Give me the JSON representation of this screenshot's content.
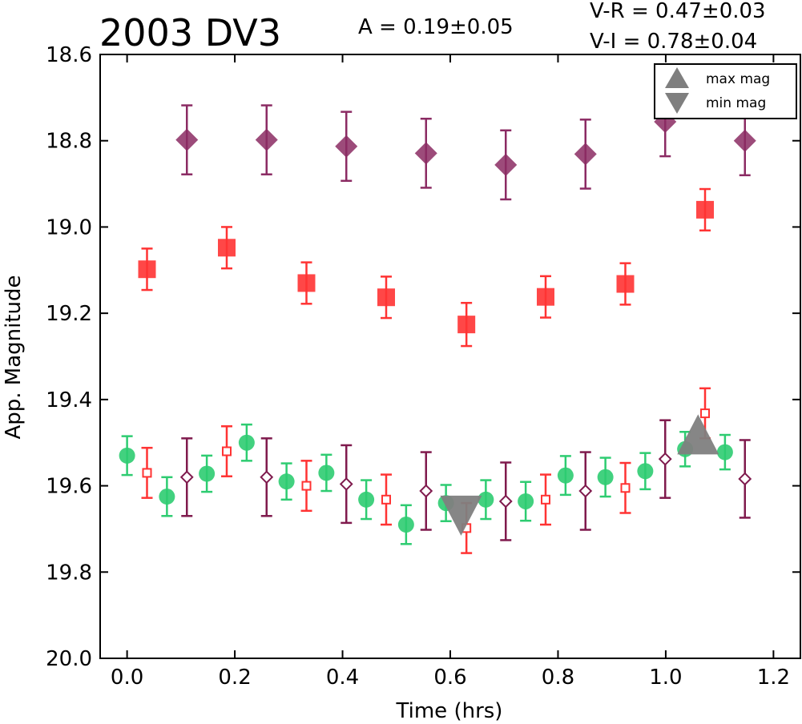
{
  "chart_data": {
    "type": "scatter",
    "title": "2003 DV3",
    "annotations": {
      "amplitude": "A  = 0.19±0.05",
      "color_vr": "V-R = 0.47±0.03",
      "color_vi": "V-I  = 0.78±0.04"
    },
    "xlabel": "Time (hrs)",
    "ylabel": "App. Magnitude",
    "xlim": [
      -0.05,
      1.25
    ],
    "ylim": [
      20.0,
      18.6
    ],
    "y_inverted": true,
    "xticks": [
      "0.0",
      "0.2",
      "0.4",
      "0.6",
      "0.8",
      "1.0",
      "1.2"
    ],
    "yticks": [
      "18.6",
      "18.8",
      "19.0",
      "19.2",
      "19.4",
      "19.6",
      "19.8",
      "20.0"
    ],
    "grid": false,
    "legend_position": "top-right",
    "legend": [
      {
        "label": "max mag",
        "marker": "triangle-up",
        "color": "#7f7f7f"
      },
      {
        "label": "min mag",
        "marker": "triangle-down",
        "color": "#7f7f7f"
      }
    ],
    "series": [
      {
        "key": "green",
        "marker": "circle",
        "filled": true,
        "color": "#2ecc71",
        "x": [
          0.0,
          0.074,
          0.148,
          0.222,
          0.296,
          0.37,
          0.444,
          0.518,
          0.592,
          0.666,
          0.74,
          0.814,
          0.888,
          0.962,
          1.036,
          1.11
        ],
        "y": [
          19.53,
          19.625,
          19.572,
          19.5,
          19.59,
          19.57,
          19.632,
          19.69,
          19.64,
          19.632,
          19.636,
          19.576,
          19.58,
          19.566,
          19.515,
          19.522
        ],
        "err": [
          0.045,
          0.045,
          0.042,
          0.042,
          0.042,
          0.042,
          0.045,
          0.045,
          0.042,
          0.045,
          0.045,
          0.045,
          0.045,
          0.042,
          0.04,
          0.04
        ]
      },
      {
        "key": "red-open",
        "marker": "square",
        "filled": false,
        "color": "#ff3333",
        "x": [
          0.037,
          0.185,
          0.333,
          0.481,
          0.63,
          0.777,
          0.925,
          1.073
        ],
        "y": [
          19.57,
          19.52,
          19.6,
          19.632,
          19.698,
          19.632,
          19.605,
          19.432
        ],
        "err": [
          0.058,
          0.058,
          0.058,
          0.058,
          0.058,
          0.058,
          0.058,
          0.058
        ]
      },
      {
        "key": "purple-open",
        "marker": "diamond",
        "filled": false,
        "color": "#7f1a4d",
        "x": [
          0.111,
          0.259,
          0.407,
          0.555,
          0.703,
          0.851,
          0.999,
          1.147
        ],
        "y": [
          19.58,
          19.58,
          19.596,
          19.612,
          19.636,
          19.612,
          19.538,
          19.584
        ],
        "err": [
          0.09,
          0.09,
          0.09,
          0.09,
          0.09,
          0.09,
          0.09,
          0.09
        ]
      },
      {
        "key": "red-filled",
        "marker": "square",
        "filled": true,
        "color": "#ff3333",
        "x": [
          0.037,
          0.185,
          0.333,
          0.481,
          0.63,
          0.777,
          0.925,
          1.073
        ],
        "y": [
          19.098,
          19.048,
          19.13,
          19.163,
          19.226,
          19.162,
          19.132,
          18.96
        ],
        "err": [
          0.048,
          0.048,
          0.048,
          0.048,
          0.05,
          0.048,
          0.048,
          0.048
        ]
      },
      {
        "key": "purple-filled",
        "marker": "diamond",
        "filled": true,
        "color": "#8b2b63",
        "x": [
          0.111,
          0.259,
          0.407,
          0.555,
          0.703,
          0.851,
          0.999,
          1.147
        ],
        "y": [
          18.798,
          18.798,
          18.813,
          18.829,
          18.856,
          18.831,
          18.756,
          18.8
        ],
        "err": [
          0.08,
          0.08,
          0.08,
          0.08,
          0.08,
          0.08,
          0.08,
          0.08
        ]
      }
    ],
    "markers_extrema": [
      {
        "type": "max",
        "x": 1.06,
        "y": 19.49,
        "marker": "triangle-up",
        "color": "#7f7f7f"
      },
      {
        "type": "min",
        "x": 0.62,
        "y": 19.66,
        "marker": "triangle-down",
        "color": "#7f7f7f"
      }
    ]
  }
}
